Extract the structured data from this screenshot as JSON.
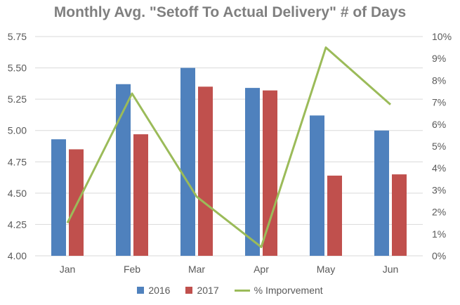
{
  "chart_data": {
    "type": "bar+line",
    "title": "Monthly Avg. \"Setoff To Actual Delivery\"  # of Days",
    "categories": [
      "Jan",
      "Feb",
      "Mar",
      "Apr",
      "May",
      "Jun"
    ],
    "series": [
      {
        "name": "2016",
        "type": "bar",
        "axis": "left",
        "color": "#4f81bd",
        "values": [
          4.93,
          5.37,
          5.5,
          5.34,
          5.12,
          5.0
        ]
      },
      {
        "name": "2017",
        "type": "bar",
        "axis": "left",
        "color": "#c0504d",
        "values": [
          4.85,
          4.97,
          5.35,
          5.32,
          4.64,
          4.65
        ]
      },
      {
        "name": "% Imporvement",
        "type": "line",
        "axis": "right",
        "color": "#9bbb59",
        "values": [
          0.015,
          0.074,
          0.027,
          0.004,
          0.095,
          0.069
        ]
      }
    ],
    "y_left": {
      "min": 4.0,
      "max": 5.75,
      "step": 0.25,
      "ticks": [
        "4.00",
        "4.25",
        "4.50",
        "4.75",
        "5.00",
        "5.25",
        "5.50",
        "5.75"
      ]
    },
    "y_right": {
      "min": 0,
      "max": 0.1,
      "step": 0.01,
      "ticks": [
        "0%",
        "1%",
        "2%",
        "3%",
        "4%",
        "5%",
        "6%",
        "7%",
        "8%",
        "9%",
        "10%"
      ]
    },
    "grid": true,
    "legend_position": "bottom"
  }
}
